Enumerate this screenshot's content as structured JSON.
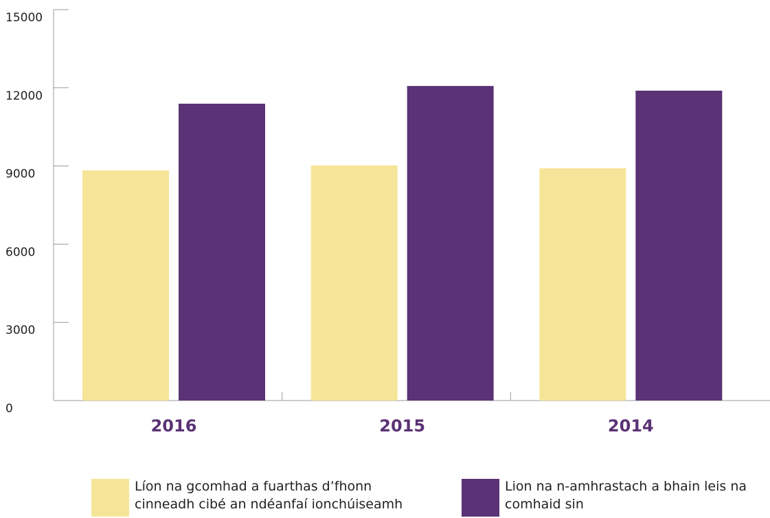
{
  "chart_data": {
    "type": "bar",
    "categories": [
      "2016",
      "2015",
      "2014"
    ],
    "series": [
      {
        "name": "Líon na gcomhad a fuarthas d’fhonn cinneadh cibé an ndéanfaí ionchúiseamh",
        "color": "#f6e598",
        "values": [
          8830,
          9020,
          8910
        ]
      },
      {
        "name": "Lion na n-amhrastach a bhain leis na comhaid sin",
        "color": "#5b3275",
        "values": [
          11390,
          12070,
          11890
        ]
      }
    ],
    "ylim": [
      0,
      15000
    ],
    "yticks": [
      0,
      3000,
      6000,
      9000,
      12000,
      15000
    ],
    "category_color": "#5b3275"
  }
}
